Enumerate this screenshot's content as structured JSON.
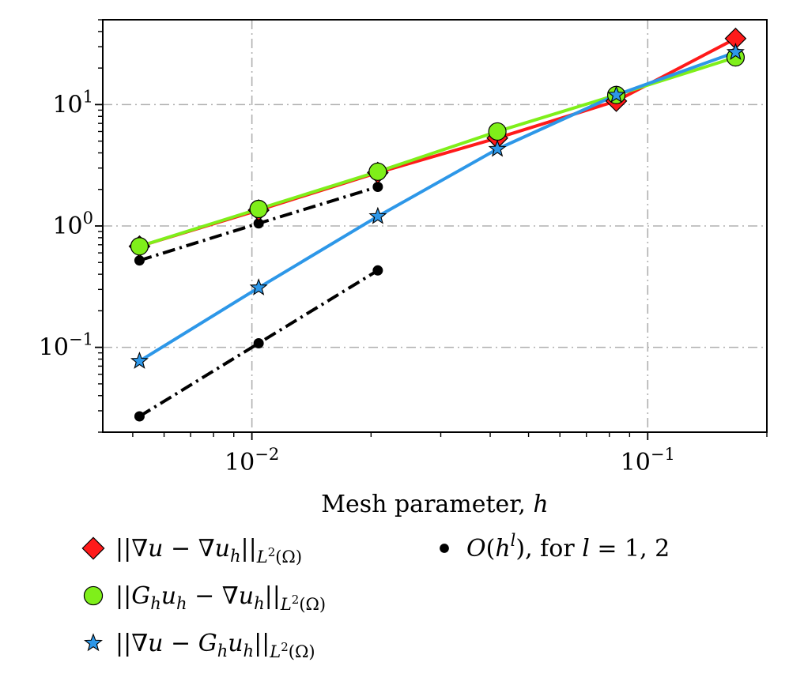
{
  "chart_data": {
    "type": "line",
    "title": "",
    "xlabel": "Mesh parameter, h",
    "ylabel": "",
    "xscale": "log",
    "yscale": "log",
    "xlim": [
      0.0042,
      0.2
    ],
    "ylim": [
      0.02,
      50
    ],
    "grid": true,
    "legend_position": "bottom",
    "x_ticks": [
      {
        "value": 0.01,
        "base": "10",
        "exp": "−2"
      },
      {
        "value": 0.1,
        "base": "10",
        "exp": "−1"
      }
    ],
    "y_ticks": [
      {
        "value": 0.1,
        "base": "10",
        "exp": "−1"
      },
      {
        "value": 1,
        "base": "10",
        "exp": "0"
      },
      {
        "value": 10,
        "base": "10",
        "exp": "1"
      }
    ],
    "series": [
      {
        "name": "||∇u − ∇u_h||_{L²(Ω)}",
        "color": "#ff1a1a",
        "marker": "diamond",
        "x": [
          0.0052,
          0.0104,
          0.0208,
          0.0417,
          0.0833,
          0.1667
        ],
        "y": [
          0.68,
          1.35,
          2.75,
          5.3,
          10.7,
          35
        ]
      },
      {
        "name": "||G_h u_h − ∇u_h||_{L²(Ω)}",
        "color": "#7fef1a",
        "marker": "circle",
        "x": [
          0.0052,
          0.0104,
          0.0208,
          0.0417,
          0.0833,
          0.1667
        ],
        "y": [
          0.68,
          1.38,
          2.8,
          6.0,
          12.0,
          24.5
        ]
      },
      {
        "name": "||∇u − G_h u_h||_{L²(Ω)}",
        "color": "#2d97e8",
        "marker": "star",
        "x": [
          0.0052,
          0.0104,
          0.0208,
          0.0417,
          0.0833,
          0.1667
        ],
        "y": [
          0.077,
          0.31,
          1.2,
          4.3,
          12.0,
          27
        ]
      }
    ],
    "reference_lines": [
      {
        "name": "O(h^l), for l = 1, 2",
        "order": 1,
        "color": "#000000",
        "x": [
          0.0052,
          0.0104,
          0.0208
        ],
        "y": [
          0.52,
          1.05,
          2.1
        ]
      },
      {
        "name": "O(h^l), for l = 1, 2",
        "order": 2,
        "color": "#000000",
        "x": [
          0.0052,
          0.0104,
          0.0208
        ],
        "y": [
          0.027,
          0.108,
          0.43
        ]
      }
    ],
    "legend": [
      {
        "marker": "diamond",
        "color": "#ff1a1a",
        "parts": [
          "||∇",
          "u",
          " − ∇",
          "u",
          "h",
          "||",
          "L",
          "2",
          "(Ω)"
        ]
      },
      {
        "marker": "circle",
        "color": "#7fef1a",
        "parts": [
          "||",
          "G",
          "h",
          "u",
          "h",
          " − ∇",
          "u",
          "h",
          "||",
          "L",
          "2",
          "(Ω)"
        ]
      },
      {
        "marker": "star",
        "color": "#2d97e8",
        "parts": [
          "||∇",
          "u",
          " − ",
          "G",
          "h",
          "u",
          "h",
          "||",
          "L",
          "2",
          "(Ω)"
        ]
      },
      {
        "marker": "dot",
        "color": "#000000",
        "parts": [
          "O",
          "(",
          "h",
          "l",
          "), for ",
          "l",
          " = 1, 2"
        ]
      }
    ]
  }
}
